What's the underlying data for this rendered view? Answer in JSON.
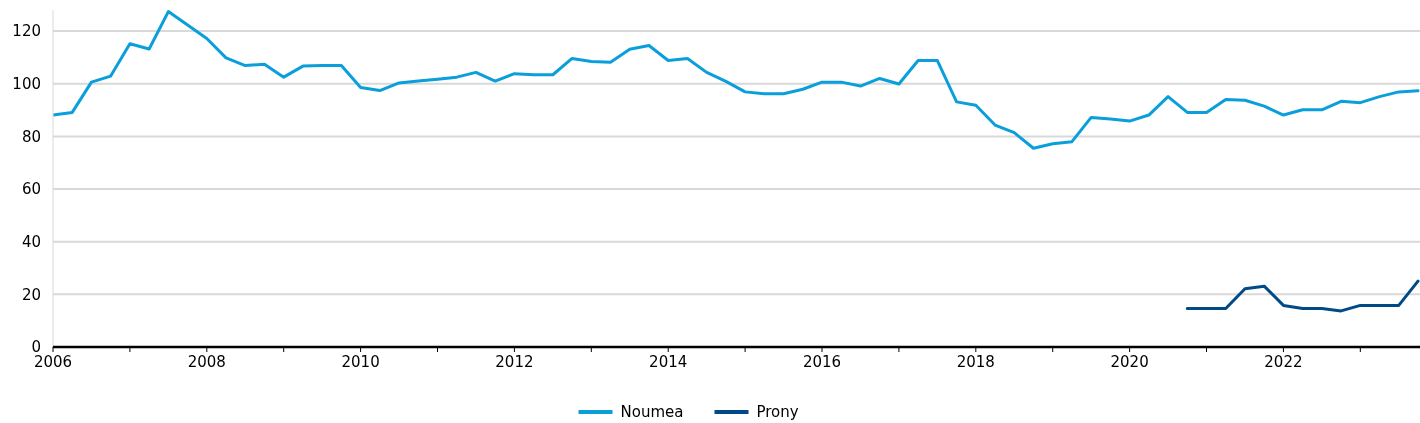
{
  "chart_data": {
    "type": "line",
    "x": [
      2006,
      2006.25,
      2006.5,
      2006.75,
      2007,
      2007.25,
      2007.5,
      2007.75,
      2008,
      2008.25,
      2008.5,
      2008.75,
      2009,
      2009.25,
      2009.5,
      2009.75,
      2010,
      2010.25,
      2010.5,
      2010.75,
      2011,
      2011.25,
      2011.5,
      2011.75,
      2012,
      2012.25,
      2012.5,
      2012.75,
      2013,
      2013.25,
      2013.5,
      2013.75,
      2014,
      2014.25,
      2014.5,
      2014.75,
      2015,
      2015.25,
      2015.5,
      2015.75,
      2016,
      2016.25,
      2016.5,
      2016.75,
      2017,
      2017.25,
      2017.5,
      2017.75,
      2018,
      2018.25,
      2018.5,
      2018.75,
      2019,
      2019.25,
      2019.5,
      2019.75,
      2020,
      2020.25,
      2020.5,
      2020.75,
      2021,
      2021.25,
      2021.5,
      2021.75,
      2022,
      2022.25,
      2022.5,
      2022.75,
      2023,
      2023.25,
      2023.5,
      2023.75
    ],
    "series": [
      {
        "name": "Noumea",
        "color": "#0a9fdb",
        "values": [
          88.1,
          89.1,
          100.6,
          102.9,
          115.2,
          113.2,
          127.4,
          122.3,
          117.2,
          109.8,
          106.9,
          107.4,
          102.5,
          106.7,
          106.9,
          106.9,
          98.6,
          97.4,
          100.3,
          101,
          101.7,
          102.5,
          104.3,
          101,
          103.8,
          103.4,
          103.4,
          109.6,
          108.4,
          108.2,
          113.1,
          114.5,
          108.8,
          109.6,
          104.3,
          100.9,
          96.9,
          96.2,
          96.2,
          97.9,
          100.6,
          100.6,
          99.1,
          102,
          99.9,
          108.8,
          108.8,
          93.1,
          91.8,
          84.3,
          81.4,
          75.5,
          77.2,
          78,
          87.2,
          86.6,
          85.8,
          88.1,
          95.1,
          89.1,
          89.1,
          94,
          93.7,
          91.5,
          88.1,
          90.1,
          90.1,
          93.3,
          92.8,
          95.1,
          96.9,
          97.3
        ]
      },
      {
        "name": "Prony",
        "color": "#004a87",
        "x": [
          2020.75,
          2021,
          2021.25,
          2021.5,
          2021.75,
          2022,
          2022.25,
          2022.5,
          2022.75,
          2023,
          2023.25,
          2023.5,
          2023.75
        ],
        "values": [
          14.6,
          14.6,
          14.6,
          22.1,
          23.1,
          15.8,
          14.6,
          14.6,
          13.7,
          15.8,
          15.8,
          15.8,
          25
        ]
      }
    ],
    "xlim": [
      2006,
      2023.75
    ],
    "xticks": [
      2006,
      {
        "value": 2007,
        "label": null
      },
      2008,
      {
        "value": 2009,
        "label": null
      },
      2010,
      {
        "value": 2011,
        "label": null
      },
      2012,
      {
        "value": 2013,
        "label": null
      },
      2014,
      {
        "value": 2015,
        "label": null
      },
      2016,
      {
        "value": 2017,
        "label": null
      },
      2018,
      {
        "value": 2019,
        "label": null
      },
      2020,
      {
        "value": 2021,
        "label": null
      },
      2022,
      {
        "value": 2023,
        "label": null
      }
    ],
    "ylim": [
      0,
      128
    ],
    "yticks": [
      0,
      20,
      40,
      60,
      80,
      100,
      120
    ],
    "grid": "y",
    "legend": "bottom",
    "marker": "none",
    "line_style": "solid"
  }
}
